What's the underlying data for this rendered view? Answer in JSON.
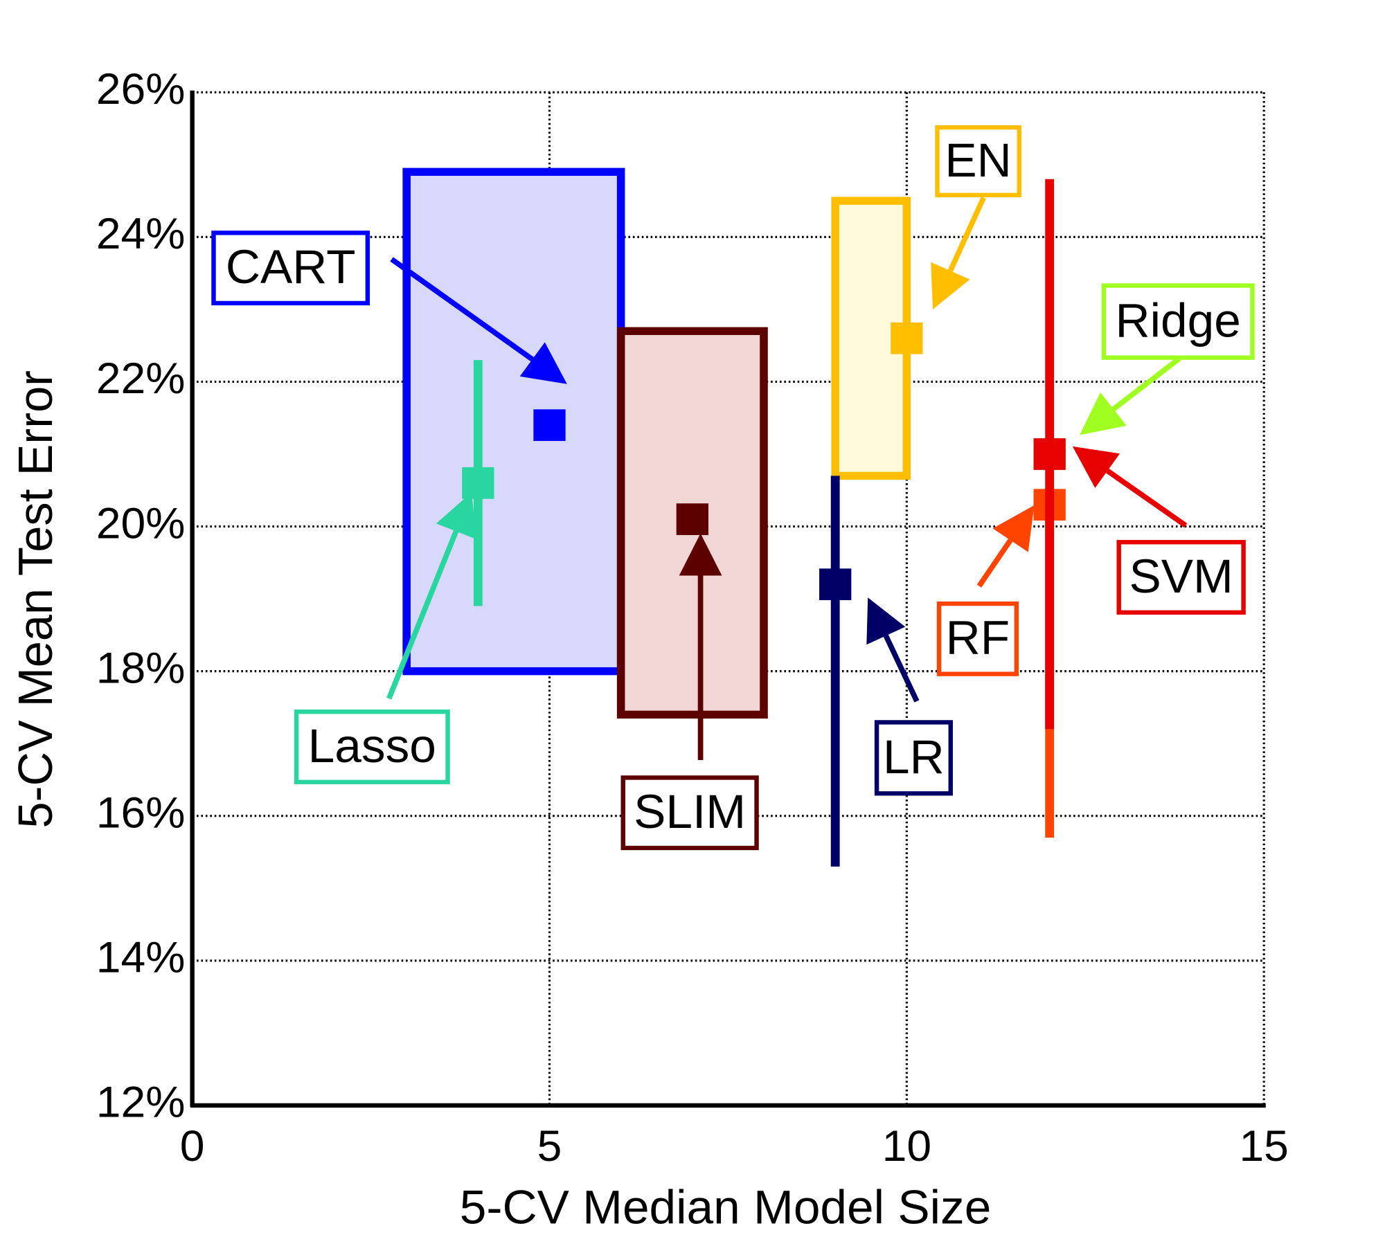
{
  "chart_data": {
    "type": "scatter",
    "xlabel": "5-CV Median Model Size",
    "ylabel": "5-CV Mean Test Error",
    "xlim": [
      0,
      15
    ],
    "ylim": [
      12,
      26
    ],
    "xticks": [
      0,
      5,
      10,
      15
    ],
    "yticks": [
      {
        "value": 12,
        "label": "12%"
      },
      {
        "value": 14,
        "label": "14%"
      },
      {
        "value": 16,
        "label": "16%"
      },
      {
        "value": 18,
        "label": "18%"
      },
      {
        "value": 20,
        "label": "20%"
      },
      {
        "value": 22,
        "label": "22%"
      },
      {
        "value": 24,
        "label": "24%"
      },
      {
        "value": 26,
        "label": "26%"
      }
    ],
    "grid": true,
    "series": [
      {
        "name": "CART",
        "color": "#0000ff",
        "fill": "#d8d8fa",
        "x": 5,
        "y": 21.4,
        "xrange": [
          3,
          6
        ],
        "yrange": [
          18,
          24.9
        ]
      },
      {
        "name": "Lasso",
        "color": "#2ad6a0",
        "x": 4,
        "y": 20.6,
        "yrange": [
          18.9,
          22.3
        ]
      },
      {
        "name": "SLIM",
        "color": "#5c0000",
        "fill": "#f2d6d6",
        "x": 7,
        "y": 20.1,
        "xrange": [
          6,
          8
        ],
        "yrange": [
          17.4,
          22.7
        ]
      },
      {
        "name": "EN",
        "color": "#ffbf00",
        "fill": "#fffadc",
        "x": 10,
        "y": 22.6,
        "xrange": [
          9,
          10
        ],
        "yrange": [
          20.7,
          24.5
        ]
      },
      {
        "name": "LR",
        "color": "#000066",
        "x": 9,
        "y": 19.2,
        "yrange": [
          15.3,
          20.7
        ]
      },
      {
        "name": "Ridge",
        "color": "#a0ff20",
        "x": 12,
        "y": 21.0
      },
      {
        "name": "RF",
        "color": "#ff4400",
        "x": 12,
        "y": 20.3,
        "yrange": [
          15.7,
          20.3
        ]
      },
      {
        "name": "SVM",
        "color": "#e60000",
        "x": 12,
        "y": 21.0,
        "yrange": [
          17.2,
          24.8
        ]
      }
    ]
  }
}
